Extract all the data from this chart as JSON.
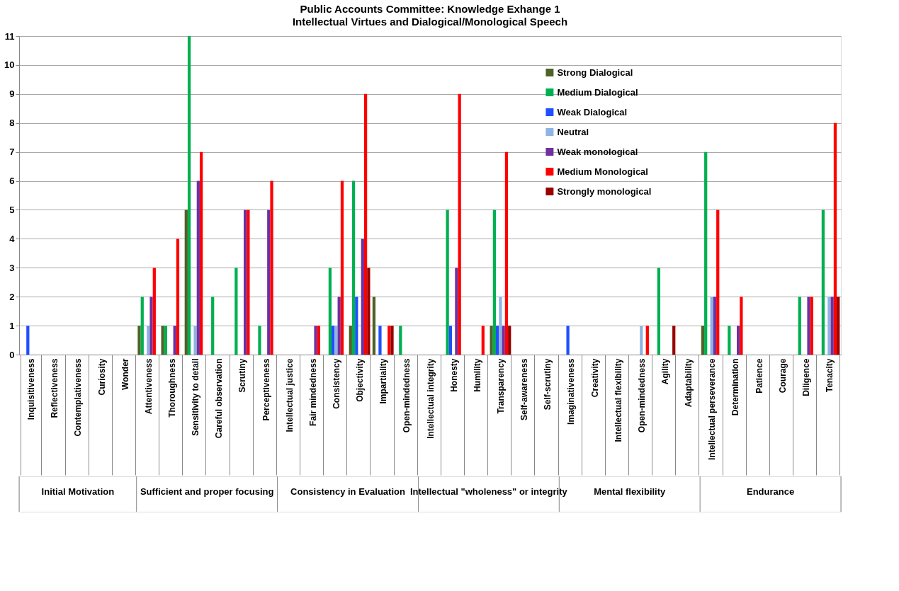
{
  "chart_data": {
    "type": "bar",
    "title": "Public Accounts Committee: Knowledge Exhange 1",
    "subtitle": "Intellectual Virtues and Dialogical/Monological Speech",
    "categories": [
      "Inquisitiveness",
      "Reflectiveness",
      "Contemplativeness",
      "Curiosity",
      "Wonder",
      "Attentiveness",
      "Thoroughness",
      "Sensitivity to detail",
      "Careful observation",
      "Scrutiny",
      "Perceptiveness",
      "Intellectual justice",
      "Fair mindedness",
      "Consistency",
      "Objectivity",
      "Impartiality",
      "Open-mindedness",
      "Intellectual integrity",
      "Honesty",
      "Humility",
      "Transparency",
      "Self-awareness",
      "Self-scrutiny",
      "Imaginativeness",
      "Creativity",
      "Intellectual flexibility",
      "Open-mindedness",
      "Agility",
      "Adaptability",
      "Intellectual perseverance",
      "Determination",
      "Patience",
      "Courage",
      "Diligence",
      "Tenacity"
    ],
    "series": [
      {
        "name": "Strong Dialogical",
        "color": "#4f6228",
        "values": [
          0,
          0,
          0,
          0,
          0,
          1,
          1,
          5,
          0,
          0,
          0,
          0,
          0,
          0,
          1,
          2,
          0,
          0,
          0,
          0,
          1,
          0,
          0,
          0,
          0,
          0,
          0,
          0,
          0,
          1,
          0,
          0,
          0,
          0,
          0
        ]
      },
      {
        "name": "Medium Dialogical",
        "color": "#00b050",
        "values": [
          0,
          0,
          0,
          0,
          0,
          2,
          1,
          11,
          2,
          3,
          1,
          0,
          0,
          3,
          6,
          0,
          1,
          0,
          5,
          0,
          5,
          0,
          0,
          0,
          0,
          0,
          0,
          3,
          0,
          7,
          1,
          0,
          0,
          2,
          5
        ]
      },
      {
        "name": "Weak Dialogical",
        "color": "#1f4fff",
        "values": [
          1,
          0,
          0,
          0,
          0,
          0,
          0,
          0,
          0,
          0,
          0,
          0,
          0,
          1,
          2,
          1,
          0,
          0,
          1,
          0,
          1,
          0,
          0,
          1,
          0,
          0,
          0,
          0,
          0,
          0,
          0,
          0,
          0,
          0,
          0
        ]
      },
      {
        "name": "Neutral",
        "color": "#8db4e2",
        "values": [
          0,
          0,
          0,
          0,
          0,
          1,
          0,
          1,
          0,
          0,
          0,
          0,
          0,
          1,
          0,
          0,
          0,
          0,
          0,
          0,
          2,
          0,
          0,
          0,
          0,
          0,
          1,
          0,
          0,
          2,
          0,
          0,
          0,
          0,
          2
        ]
      },
      {
        "name": "Weak monological",
        "color": "#7030a0",
        "values": [
          0,
          0,
          0,
          0,
          0,
          2,
          1,
          6,
          0,
          5,
          5,
          0,
          1,
          2,
          4,
          0,
          0,
          0,
          3,
          0,
          1,
          0,
          0,
          0,
          0,
          0,
          0,
          0,
          0,
          2,
          1,
          0,
          0,
          2,
          2
        ]
      },
      {
        "name": "Medium Monological",
        "color": "#ff0000",
        "values": [
          0,
          0,
          0,
          0,
          0,
          3,
          4,
          7,
          0,
          5,
          6,
          0,
          1,
          6,
          9,
          1,
          0,
          0,
          9,
          1,
          7,
          0,
          0,
          0,
          0,
          0,
          1,
          0,
          0,
          5,
          2,
          0,
          0,
          2,
          8
        ]
      },
      {
        "name": "Strongly monological",
        "color": "#990000",
        "values": [
          0,
          0,
          0,
          0,
          0,
          0,
          0,
          0,
          0,
          0,
          0,
          0,
          0,
          0,
          3,
          1,
          0,
          0,
          0,
          0,
          1,
          0,
          0,
          0,
          0,
          0,
          0,
          1,
          0,
          0,
          0,
          0,
          0,
          0,
          2
        ]
      }
    ],
    "ylim": [
      0,
      11
    ],
    "yticks": [
      0,
      1,
      2,
      3,
      4,
      5,
      6,
      7,
      8,
      9,
      10,
      11
    ],
    "grid": "y",
    "legend": "top right",
    "annotations": [
      "Initial Motivation",
      "Sufficient and proper focusing",
      "Consistency in Evaluation",
      "Intellectual \"wholeness\" or integrity",
      "Mental flexibility",
      "Endurance"
    ]
  }
}
